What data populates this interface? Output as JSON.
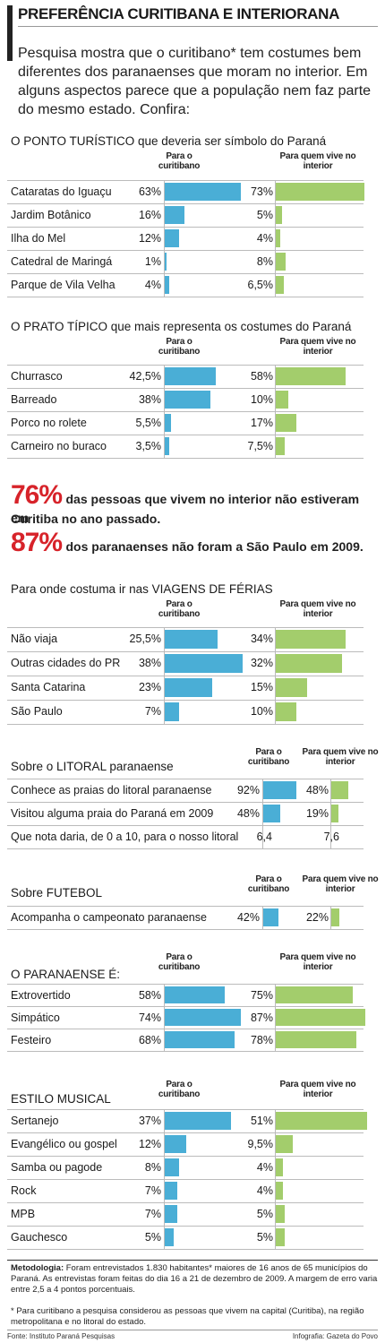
{
  "title": "PREFERÊNCIA CURITIBANA E INTERIORANA",
  "intro": "Pesquisa mostra que o curitibano* tem costumes bem diferentes dos paranaenses que moram no interior. Em alguns aspectos parece que a população nem faz parte do mesmo estado. Confira:",
  "col_heads": {
    "curitibano": "Para o curitibano",
    "interior": "Para quem vive no interior"
  },
  "chart_data": [
    {
      "type": "bar",
      "title": "O PONTO TURÍSTICO",
      "title_rest": " que deveria ser símbolo do Paraná",
      "categories": [
        "Cataratas do Iguaçu",
        "Jardim Botânico",
        "Ilha do Mel",
        "Catedral de Maringá",
        "Parque de Vila Velha"
      ],
      "series": [
        {
          "name": "Para o curitibano",
          "values": [
            63,
            16,
            12,
            1,
            4
          ],
          "labels": [
            "63%",
            "16%",
            "12%",
            "1%",
            "4%"
          ]
        },
        {
          "name": "Para quem vive no interior",
          "values": [
            73,
            5,
            4,
            8,
            6.5
          ],
          "labels": [
            "73%",
            "5%",
            "4%",
            "8%",
            "6,5%"
          ]
        }
      ]
    },
    {
      "type": "bar",
      "title": "O PRATO TÍPICO",
      "title_rest": " que mais representa os costumes do Paraná",
      "categories": [
        "Churrasco",
        "Barreado",
        "Porco no rolete",
        "Carneiro no buraco"
      ],
      "series": [
        {
          "name": "Para o curitibano",
          "values": [
            42.5,
            38,
            5.5,
            3.5
          ],
          "labels": [
            "42,5%",
            "38%",
            "5,5%",
            "3,5%"
          ]
        },
        {
          "name": "Para quem vive no interior",
          "values": [
            58,
            10,
            17,
            7.5
          ],
          "labels": [
            "58%",
            "10%",
            "17%",
            "7,5%"
          ]
        }
      ]
    },
    {
      "type": "bar",
      "title": "VIAGENS DE FÉRIAS",
      "title_prefix": "Para onde costuma ir nas ",
      "categories": [
        "Não viaja",
        "Outras cidades do PR",
        "Santa Catarina",
        "São Paulo"
      ],
      "series": [
        {
          "name": "Para o curitibano",
          "values": [
            25.5,
            38,
            23,
            7
          ],
          "labels": [
            "25,5%",
            "38%",
            "23%",
            "7%"
          ]
        },
        {
          "name": "Para quem vive no interior",
          "values": [
            34,
            32,
            15,
            10
          ],
          "labels": [
            "34%",
            "32%",
            "15%",
            "10%"
          ]
        }
      ]
    },
    {
      "type": "bar",
      "title": "LITORAL",
      "title_prefix": "Sobre o ",
      "title_rest": " paranaense",
      "categories": [
        "Conhece as praias do litoral paranaense",
        "Visitou alguma praia do Paraná em 2009"
      ],
      "series": [
        {
          "name": "Para o curitibano",
          "values": [
            92,
            48
          ],
          "labels": [
            "92%",
            "48%"
          ]
        },
        {
          "name": "Para quem vive no interior",
          "values": [
            48,
            19
          ],
          "labels": [
            "48%",
            "19%"
          ]
        }
      ],
      "extra_row": {
        "label": "Que nota daria, de 0 a 10, para o nosso litoral",
        "curitibano": "6,4",
        "interior": "7,6"
      }
    },
    {
      "type": "bar",
      "title": "FUTEBOL",
      "title_prefix": "Sobre ",
      "categories": [
        "Acompanha o campeonato paranaense"
      ],
      "series": [
        {
          "name": "Para o curitibano",
          "values": [
            42
          ],
          "labels": [
            "42%"
          ]
        },
        {
          "name": "Para quem vive no interior",
          "values": [
            22
          ],
          "labels": [
            "22%"
          ]
        }
      ]
    },
    {
      "type": "bar",
      "title": "O PARANAENSE É:",
      "categories": [
        "Extrovertido",
        "Simpático",
        "Festeiro"
      ],
      "series": [
        {
          "name": "Para o curitibano",
          "values": [
            58,
            74,
            68
          ],
          "labels": [
            "58%",
            "74%",
            "68%"
          ]
        },
        {
          "name": "Para quem vive no interior",
          "values": [
            75,
            87,
            78
          ],
          "labels": [
            "75%",
            "87%",
            "78%"
          ]
        }
      ]
    },
    {
      "type": "bar",
      "title": "ESTILO MUSICAL",
      "categories": [
        "Sertanejo",
        "Evangélico ou gospel",
        "Samba ou pagode",
        "Rock",
        "MPB",
        "Gauchesco"
      ],
      "series": [
        {
          "name": "Para o curitibano",
          "values": [
            37,
            12,
            8,
            7,
            7,
            5
          ],
          "labels": [
            "37%",
            "12%",
            "8%",
            "7%",
            "7%",
            "5%"
          ]
        },
        {
          "name": "Para quem vive no interior",
          "values": [
            51,
            9.5,
            4,
            4,
            5,
            5
          ],
          "labels": [
            "51%",
            "9,5%",
            "4%",
            "4%",
            "5%",
            "5%"
          ]
        }
      ]
    }
  ],
  "highlights": [
    {
      "value": "76%",
      "text": "das pessoas que vivem no interior não estiveram em",
      "text2": "Curitiba no ano passado."
    },
    {
      "value": "87%",
      "text": "dos paranaenses não foram a São Paulo em 2009."
    }
  ],
  "methodology": {
    "label": "Metodologia:",
    "text": " Foram entrevistados 1.830 habitantes* maiores de 16 anos de 65 municípios do Paraná. As entrevistas foram feitas do dia 16 a 21 de dezembro de 2009. A margem de erro varia entre 2,5 a 4 pontos porcentuais.",
    "note": "* Para curitibano a pesquisa considerou as pessoas que vivem na capital (Curitiba), na região metropolitana e no litoral do estado."
  },
  "source": "Fonte: Instituto Paraná Pesquisas",
  "credit": "Infografia: Gazeta do Povo",
  "colors": {
    "curitibano": "#4aaed6",
    "interior": "#a3cd6c",
    "highlight": "#d7232a"
  }
}
